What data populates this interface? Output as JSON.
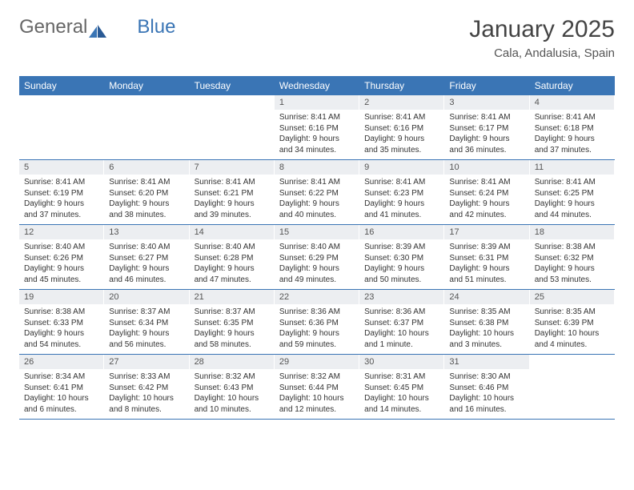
{
  "logo": {
    "text1": "General",
    "text2": "Blue"
  },
  "title": {
    "month": "January 2025",
    "location": "Cala, Andalusia, Spain"
  },
  "weekdays": [
    "Sunday",
    "Monday",
    "Tuesday",
    "Wednesday",
    "Thursday",
    "Friday",
    "Saturday"
  ],
  "labels": {
    "sunrise": "Sunrise:",
    "sunset": "Sunset:",
    "daylight": "Daylight:"
  },
  "colors": {
    "header_bg": "#3a75b5",
    "daynum_bg": "#eceef1",
    "border": "#3a75b5"
  },
  "weeks": [
    [
      null,
      null,
      null,
      {
        "n": "1",
        "sr": "8:41 AM",
        "ss": "6:16 PM",
        "dl": "9 hours and 34 minutes."
      },
      {
        "n": "2",
        "sr": "8:41 AM",
        "ss": "6:16 PM",
        "dl": "9 hours and 35 minutes."
      },
      {
        "n": "3",
        "sr": "8:41 AM",
        "ss": "6:17 PM",
        "dl": "9 hours and 36 minutes."
      },
      {
        "n": "4",
        "sr": "8:41 AM",
        "ss": "6:18 PM",
        "dl": "9 hours and 37 minutes."
      }
    ],
    [
      {
        "n": "5",
        "sr": "8:41 AM",
        "ss": "6:19 PM",
        "dl": "9 hours and 37 minutes."
      },
      {
        "n": "6",
        "sr": "8:41 AM",
        "ss": "6:20 PM",
        "dl": "9 hours and 38 minutes."
      },
      {
        "n": "7",
        "sr": "8:41 AM",
        "ss": "6:21 PM",
        "dl": "9 hours and 39 minutes."
      },
      {
        "n": "8",
        "sr": "8:41 AM",
        "ss": "6:22 PM",
        "dl": "9 hours and 40 minutes."
      },
      {
        "n": "9",
        "sr": "8:41 AM",
        "ss": "6:23 PM",
        "dl": "9 hours and 41 minutes."
      },
      {
        "n": "10",
        "sr": "8:41 AM",
        "ss": "6:24 PM",
        "dl": "9 hours and 42 minutes."
      },
      {
        "n": "11",
        "sr": "8:41 AM",
        "ss": "6:25 PM",
        "dl": "9 hours and 44 minutes."
      }
    ],
    [
      {
        "n": "12",
        "sr": "8:40 AM",
        "ss": "6:26 PM",
        "dl": "9 hours and 45 minutes."
      },
      {
        "n": "13",
        "sr": "8:40 AM",
        "ss": "6:27 PM",
        "dl": "9 hours and 46 minutes."
      },
      {
        "n": "14",
        "sr": "8:40 AM",
        "ss": "6:28 PM",
        "dl": "9 hours and 47 minutes."
      },
      {
        "n": "15",
        "sr": "8:40 AM",
        "ss": "6:29 PM",
        "dl": "9 hours and 49 minutes."
      },
      {
        "n": "16",
        "sr": "8:39 AM",
        "ss": "6:30 PM",
        "dl": "9 hours and 50 minutes."
      },
      {
        "n": "17",
        "sr": "8:39 AM",
        "ss": "6:31 PM",
        "dl": "9 hours and 51 minutes."
      },
      {
        "n": "18",
        "sr": "8:38 AM",
        "ss": "6:32 PM",
        "dl": "9 hours and 53 minutes."
      }
    ],
    [
      {
        "n": "19",
        "sr": "8:38 AM",
        "ss": "6:33 PM",
        "dl": "9 hours and 54 minutes."
      },
      {
        "n": "20",
        "sr": "8:37 AM",
        "ss": "6:34 PM",
        "dl": "9 hours and 56 minutes."
      },
      {
        "n": "21",
        "sr": "8:37 AM",
        "ss": "6:35 PM",
        "dl": "9 hours and 58 minutes."
      },
      {
        "n": "22",
        "sr": "8:36 AM",
        "ss": "6:36 PM",
        "dl": "9 hours and 59 minutes."
      },
      {
        "n": "23",
        "sr": "8:36 AM",
        "ss": "6:37 PM",
        "dl": "10 hours and 1 minute."
      },
      {
        "n": "24",
        "sr": "8:35 AM",
        "ss": "6:38 PM",
        "dl": "10 hours and 3 minutes."
      },
      {
        "n": "25",
        "sr": "8:35 AM",
        "ss": "6:39 PM",
        "dl": "10 hours and 4 minutes."
      }
    ],
    [
      {
        "n": "26",
        "sr": "8:34 AM",
        "ss": "6:41 PM",
        "dl": "10 hours and 6 minutes."
      },
      {
        "n": "27",
        "sr": "8:33 AM",
        "ss": "6:42 PM",
        "dl": "10 hours and 8 minutes."
      },
      {
        "n": "28",
        "sr": "8:32 AM",
        "ss": "6:43 PM",
        "dl": "10 hours and 10 minutes."
      },
      {
        "n": "29",
        "sr": "8:32 AM",
        "ss": "6:44 PM",
        "dl": "10 hours and 12 minutes."
      },
      {
        "n": "30",
        "sr": "8:31 AM",
        "ss": "6:45 PM",
        "dl": "10 hours and 14 minutes."
      },
      {
        "n": "31",
        "sr": "8:30 AM",
        "ss": "6:46 PM",
        "dl": "10 hours and 16 minutes."
      },
      null
    ]
  ]
}
